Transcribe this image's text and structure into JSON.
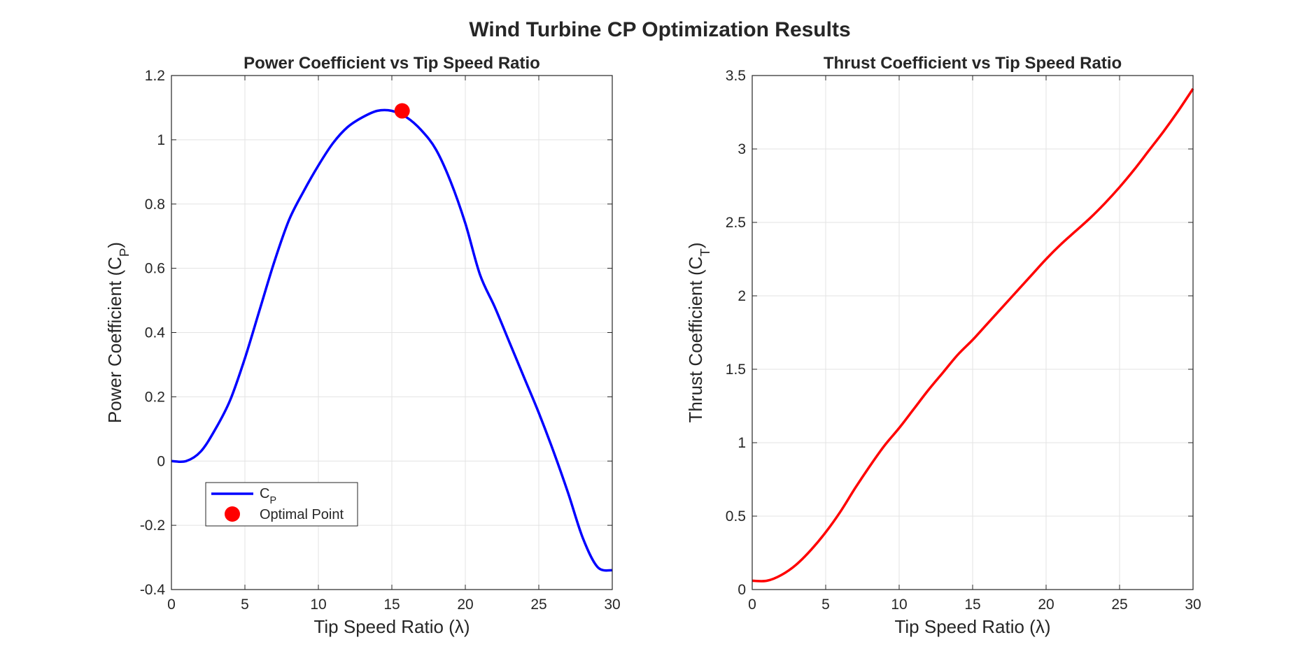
{
  "figure": {
    "title": "Wind Turbine CP Optimization Results"
  },
  "chart_data": [
    {
      "type": "line",
      "title": "Power Coefficient vs Tip Speed Ratio",
      "xlabel": "Tip Speed Ratio (λ)",
      "ylabel": {
        "main": "Power  Coefficient  (C",
        "sub": "P",
        "close": ")"
      },
      "xlim": [
        0,
        30
      ],
      "ylim": [
        -0.4,
        1.2
      ],
      "xticks": [
        0,
        5,
        10,
        15,
        20,
        25,
        30
      ],
      "xtick_labels": [
        "0",
        "5",
        "10",
        "15",
        "20",
        "25",
        "30"
      ],
      "yticks": [
        -0.4,
        -0.2,
        0,
        0.2,
        0.4,
        0.6,
        0.8,
        1,
        1.2
      ],
      "ytick_labels": [
        "-0.4",
        "-0.2",
        "0",
        "0.2",
        "0.4",
        "0.6",
        "0.8",
        "1",
        "1.2"
      ],
      "grid": true,
      "legend_position": "lower-left",
      "series": [
        {
          "name": {
            "main": "C",
            "sub": "P"
          },
          "color": "#0000ff",
          "x": [
            0,
            1,
            2,
            3,
            4,
            5,
            6,
            7,
            8,
            9,
            10,
            11,
            12,
            13,
            14,
            15,
            16,
            17,
            18,
            19,
            20,
            21,
            22,
            23,
            24,
            25,
            26,
            27,
            28,
            29,
            30
          ],
          "y": [
            0,
            0,
            0.03,
            0.1,
            0.19,
            0.32,
            0.47,
            0.62,
            0.75,
            0.84,
            0.92,
            0.99,
            1.04,
            1.07,
            1.09,
            1.09,
            1.07,
            1.03,
            0.97,
            0.87,
            0.74,
            0.58,
            0.48,
            0.37,
            0.26,
            0.15,
            0.03,
            -0.1,
            -0.24,
            -0.33,
            -0.34
          ]
        }
      ],
      "markers": [
        {
          "name": "Optimal Point",
          "x": 15.7,
          "y": 1.09,
          "color": "#ff0000"
        }
      ]
    },
    {
      "type": "line",
      "title": "Thrust Coefficient vs Tip Speed Ratio",
      "xlabel": "Tip Speed Ratio (λ)",
      "ylabel": {
        "main": "Thrust  Coefficient  (C",
        "sub": "T",
        "close": ")"
      },
      "xlim": [
        0,
        30
      ],
      "ylim": [
        0,
        3.5
      ],
      "xticks": [
        0,
        5,
        10,
        15,
        20,
        25,
        30
      ],
      "xtick_labels": [
        "0",
        "5",
        "10",
        "15",
        "20",
        "25",
        "30"
      ],
      "yticks": [
        0,
        0.5,
        1,
        1.5,
        2,
        2.5,
        3,
        3.5
      ],
      "ytick_labels": [
        "0",
        "0.5",
        "1",
        "1.5",
        "2",
        "2.5",
        "3",
        "3.5"
      ],
      "grid": true,
      "series": [
        {
          "color": "#ff0000",
          "x": [
            0,
            1,
            2,
            3,
            4,
            5,
            6,
            7,
            8,
            9,
            10,
            11,
            12,
            13,
            14,
            15,
            16,
            17,
            18,
            19,
            20,
            21,
            22,
            23,
            24,
            25,
            26,
            27,
            28,
            29,
            30
          ],
          "y": [
            0.06,
            0.06,
            0.1,
            0.17,
            0.27,
            0.39,
            0.53,
            0.69,
            0.84,
            0.98,
            1.1,
            1.23,
            1.36,
            1.48,
            1.6,
            1.7,
            1.81,
            1.92,
            2.03,
            2.14,
            2.25,
            2.35,
            2.44,
            2.53,
            2.63,
            2.74,
            2.86,
            2.99,
            3.12,
            3.26,
            3.41
          ]
        }
      ]
    }
  ]
}
